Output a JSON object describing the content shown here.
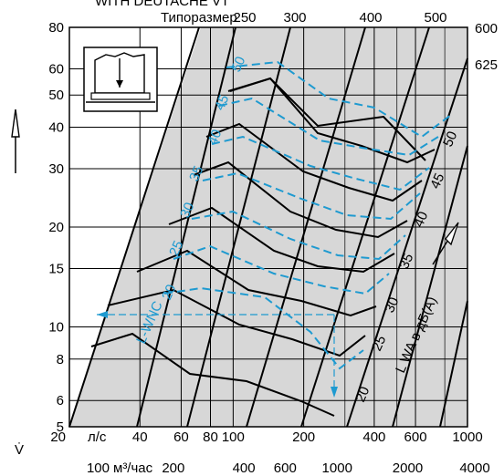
{
  "header_cut_text": "WITH DEUTACHE VT",
  "chart_data": {
    "type": "line",
    "header_label": "Типоразмер",
    "y_axis": {
      "symbol": "V̇",
      "scale": "log",
      "range": [
        5,
        80
      ],
      "ticks": [
        5,
        6,
        8,
        10,
        15,
        20,
        30,
        40,
        50,
        60,
        80
      ]
    },
    "x_axis_ls": {
      "unit": "л/с",
      "scale": "log",
      "range": [
        20,
        1000
      ],
      "ticks": [
        20,
        40,
        60,
        80,
        100,
        200,
        400,
        600,
        1000
      ]
    },
    "x_axis_m3h": {
      "unit": "м³/час",
      "scale": "log",
      "ticks": [
        100,
        200,
        400,
        600,
        1000,
        2000,
        4000
      ]
    },
    "sizes": [
      "250",
      "300",
      "400",
      "500",
      "600",
      "625"
    ],
    "black_levels": [
      "20",
      "25",
      "30",
      "35",
      "40",
      "45",
      "50"
    ],
    "cyan_levels": [
      "20",
      "25",
      "30",
      "35",
      "40",
      "45",
      "50"
    ],
    "lwnc_label": "L-WNC",
    "lwa_label": "L WA в дБ(А)",
    "colors": {
      "background": "#d7d7d7",
      "grid": "#000000",
      "curve": "#000000",
      "nc_curve": "#1e9ad0",
      "panel": "#ffffff"
    }
  }
}
